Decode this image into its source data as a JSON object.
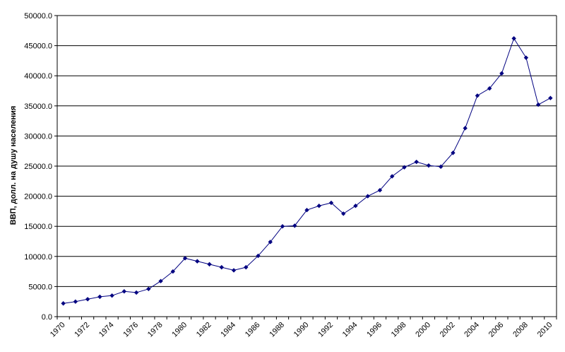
{
  "chart_data": {
    "type": "line",
    "title": "",
    "xlabel": "",
    "ylabel": "ВВП, долл. на душу населения",
    "xlim": [
      1970,
      2010
    ],
    "ylim": [
      0,
      50000
    ],
    "y_ticks": [
      "0.0",
      "5000.0",
      "10000.0",
      "15000.0",
      "20000.0",
      "25000.0",
      "30000.0",
      "35000.0",
      "40000.0",
      "45000.0",
      "50000.0"
    ],
    "x_ticks": [
      "1970",
      "1972",
      "1974",
      "1976",
      "1978",
      "1980",
      "1982",
      "1984",
      "1986",
      "1988",
      "1990",
      "1992",
      "1994",
      "1996",
      "1998",
      "2000",
      "2002",
      "2004",
      "2006",
      "2008",
      "2010"
    ],
    "grid": "horizontal",
    "legend": "none",
    "line_color": "#000080",
    "series": [
      {
        "x": [
          1970,
          1971,
          1972,
          1973,
          1974,
          1975,
          1976,
          1977,
          1978,
          1979,
          1980,
          1981,
          1982,
          1983,
          1984,
          1985,
          1986,
          1987,
          1988,
          1989,
          1990,
          1991,
          1992,
          1993,
          1994,
          1995,
          1996,
          1997,
          1998,
          1999,
          2000,
          2001,
          2002,
          2003,
          2004,
          2005,
          2006,
          2007,
          2008,
          2009,
          2010
        ],
        "values": [
          2200,
          2500,
          2900,
          3300,
          3500,
          4200,
          4000,
          4600,
          5900,
          7500,
          9700,
          9200,
          8700,
          8200,
          7700,
          8200,
          10100,
          12400,
          15000,
          15100,
          17700,
          18400,
          18900,
          17100,
          18400,
          20000,
          21000,
          23300,
          24800,
          25700,
          25100,
          24900,
          27200,
          31300,
          36700,
          37900,
          40400,
          46200,
          43000,
          35200,
          36300
        ]
      }
    ]
  }
}
